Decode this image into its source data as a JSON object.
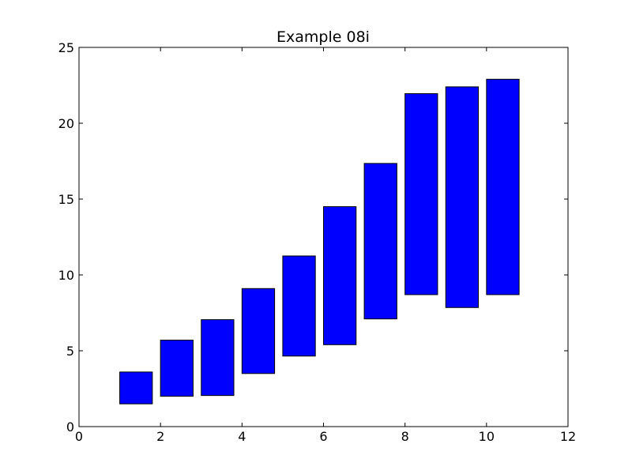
{
  "chart_data": {
    "type": "bar",
    "title": "Example 08i",
    "xlabel": "",
    "ylabel": "",
    "xlim": [
      0,
      12
    ],
    "ylim": [
      0,
      25
    ],
    "x_ticks": [
      "0",
      "2",
      "4",
      "6",
      "8",
      "10",
      "12"
    ],
    "y_ticks": [
      "0",
      "5",
      "10",
      "15",
      "20",
      "25"
    ],
    "grid": false,
    "bar_color": "#0000ff",
    "edge_color": "#000000",
    "bar_width": 0.8,
    "bars": [
      {
        "x": 1,
        "bottom": 1.5,
        "top": 3.6
      },
      {
        "x": 2,
        "bottom": 2.0,
        "top": 5.7
      },
      {
        "x": 3,
        "bottom": 2.05,
        "top": 7.05
      },
      {
        "x": 4,
        "bottom": 3.5,
        "top": 9.1
      },
      {
        "x": 5,
        "bottom": 4.65,
        "top": 11.25
      },
      {
        "x": 6,
        "bottom": 5.4,
        "top": 14.5
      },
      {
        "x": 7,
        "bottom": 7.1,
        "top": 17.35
      },
      {
        "x": 8,
        "bottom": 8.7,
        "top": 21.95
      },
      {
        "x": 9,
        "bottom": 7.85,
        "top": 22.4
      },
      {
        "x": 10,
        "bottom": 8.7,
        "top": 22.9
      }
    ]
  }
}
